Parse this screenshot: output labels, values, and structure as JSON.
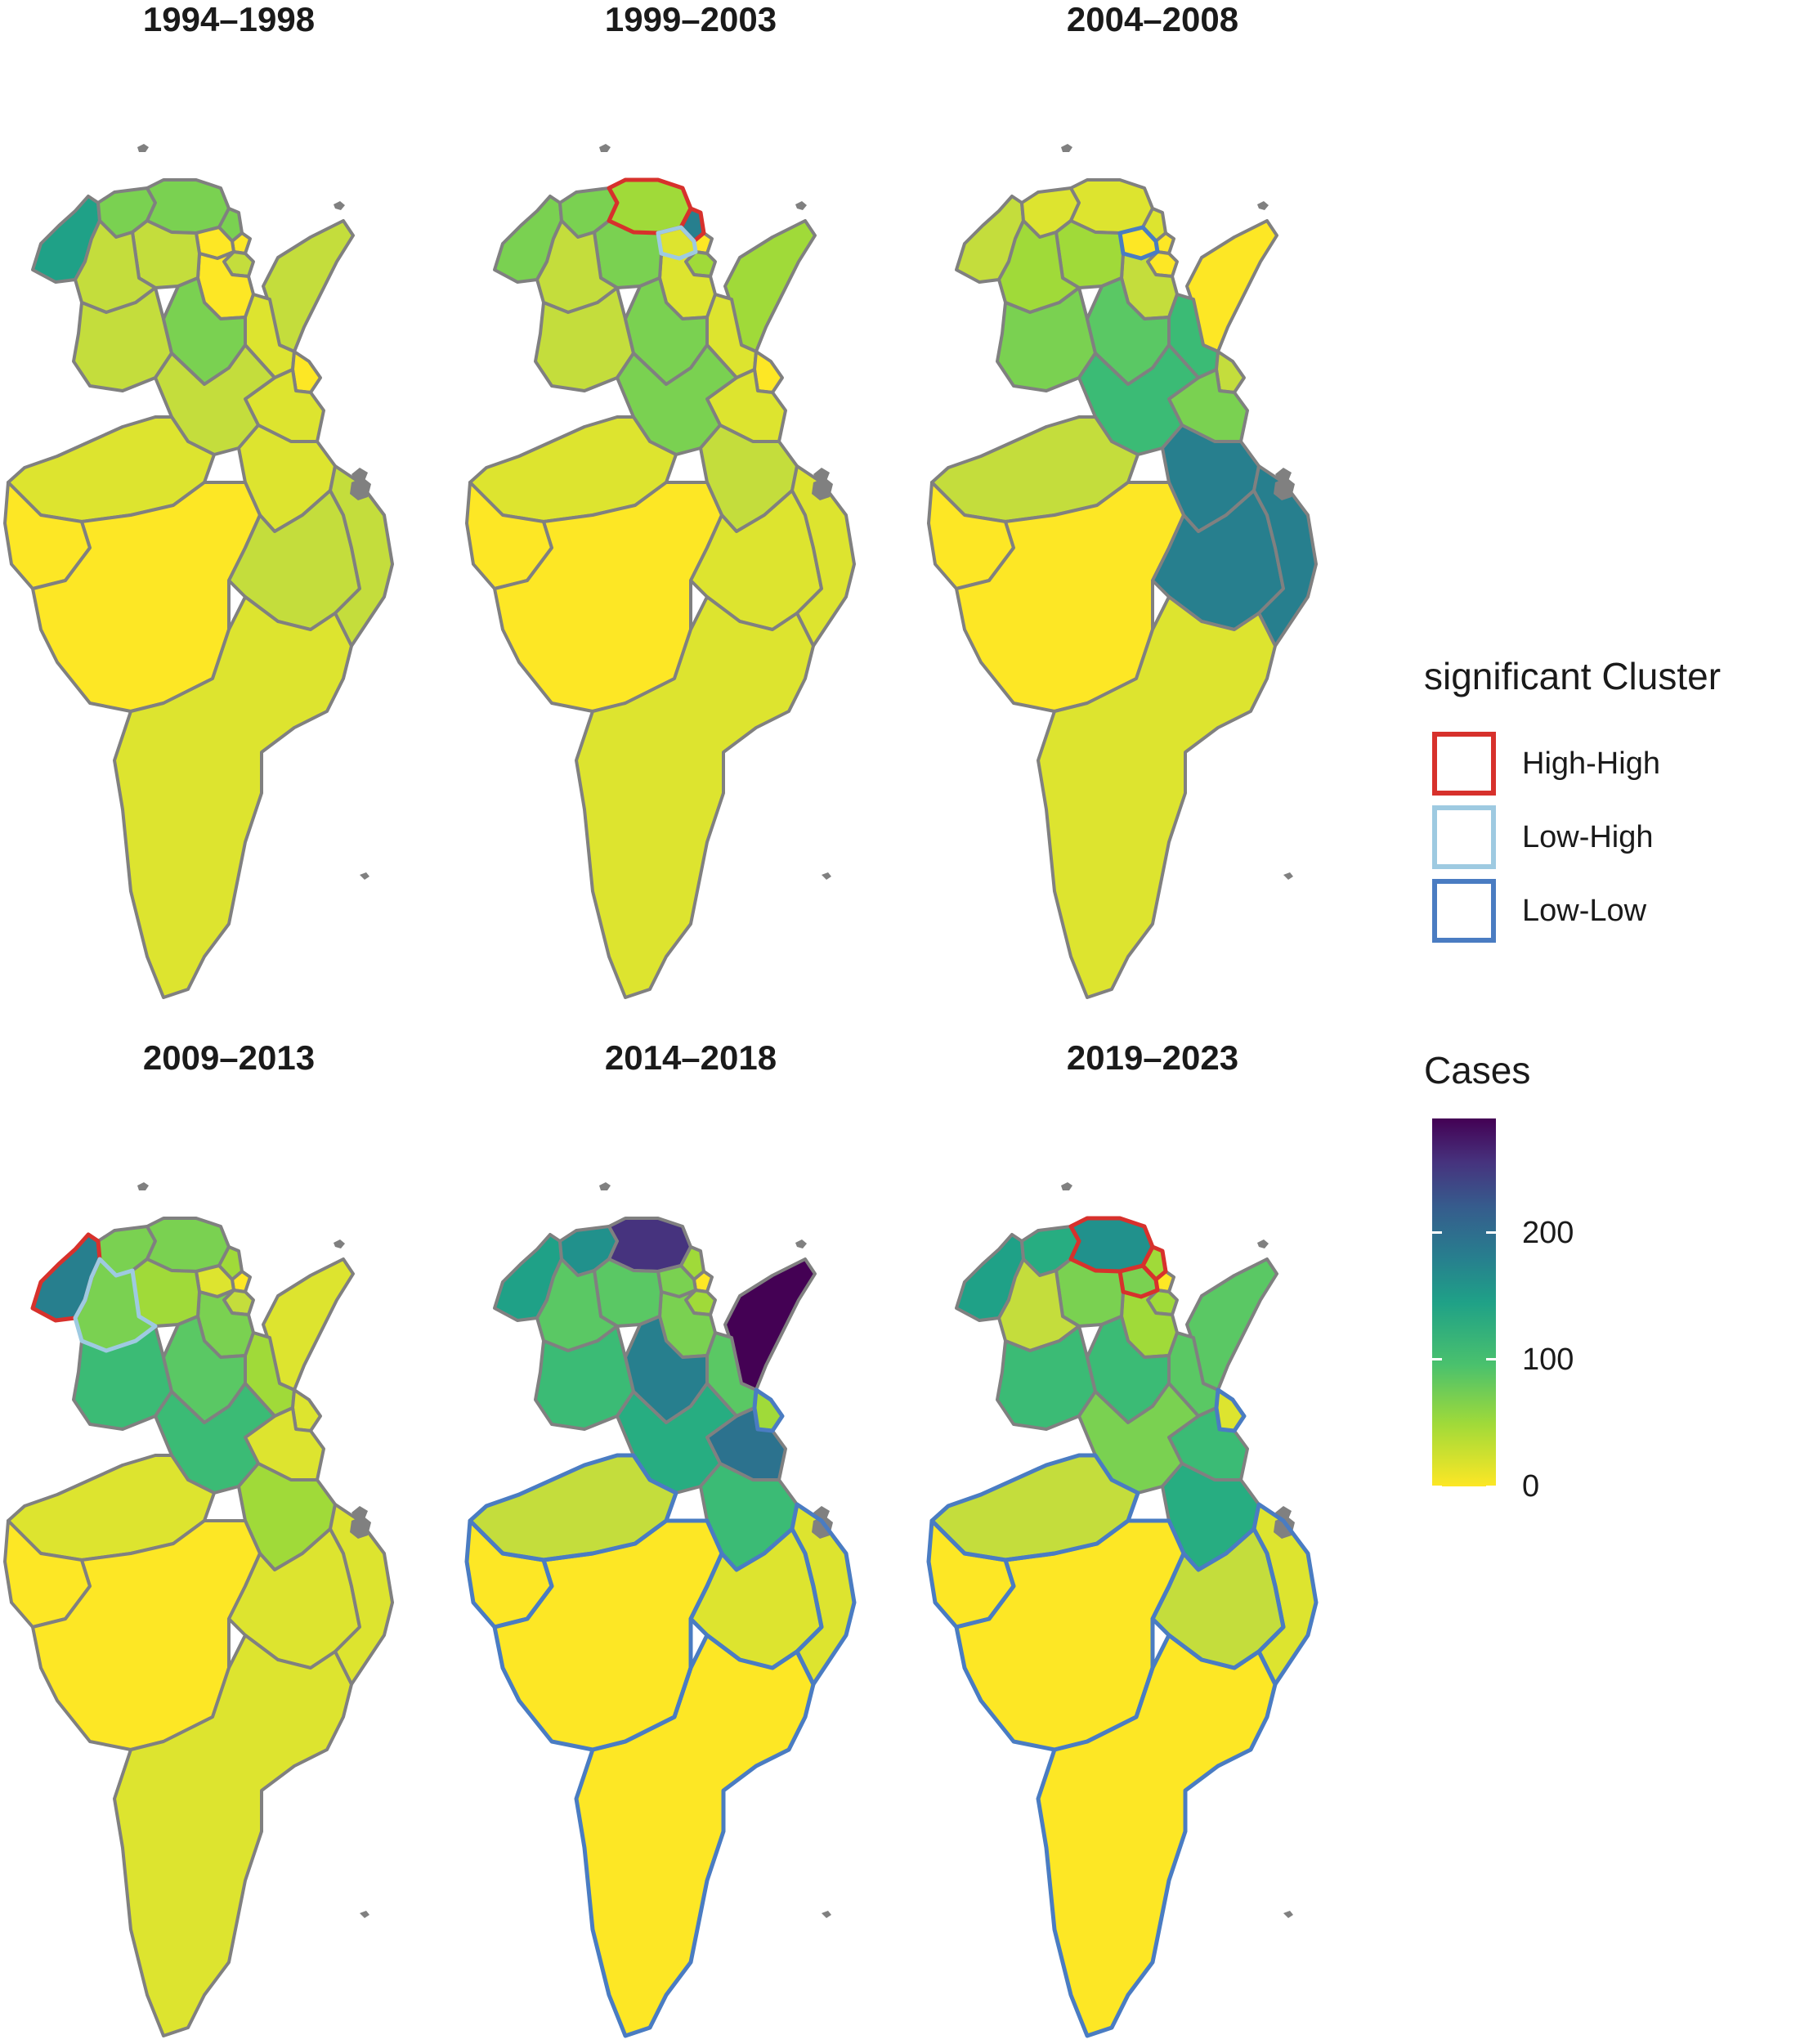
{
  "panels": [
    {
      "title": "1994–1998"
    },
    {
      "title": "1999–2003"
    },
    {
      "title": "2004–2008"
    },
    {
      "title": "2009–2013"
    },
    {
      "title": "2014–2018"
    },
    {
      "title": "2019–2023"
    }
  ],
  "legend_cluster": {
    "title": "significant Cluster",
    "items": [
      {
        "label": "High-High",
        "color": "#d7312c"
      },
      {
        "label": "Low-High",
        "color": "#9ecae1"
      },
      {
        "label": "Low-Low",
        "color": "#4a7cc2"
      }
    ]
  },
  "legend_cases": {
    "title": "Cases",
    "ticks": [
      {
        "value": 0,
        "label": "0"
      },
      {
        "value": 100,
        "label": "100"
      },
      {
        "value": 200,
        "label": "200"
      }
    ],
    "range": [
      0,
      290
    ],
    "colors": [
      "#fde725",
      "#a0da39",
      "#4ac16d",
      "#1fa187",
      "#277f8e",
      "#365c8d",
      "#46337e",
      "#440154"
    ]
  },
  "colors": {
    "border": "#808080",
    "high_high": "#d7312c",
    "low_high": "#9ecae1",
    "low_low": "#4a7cc2"
  }
}
